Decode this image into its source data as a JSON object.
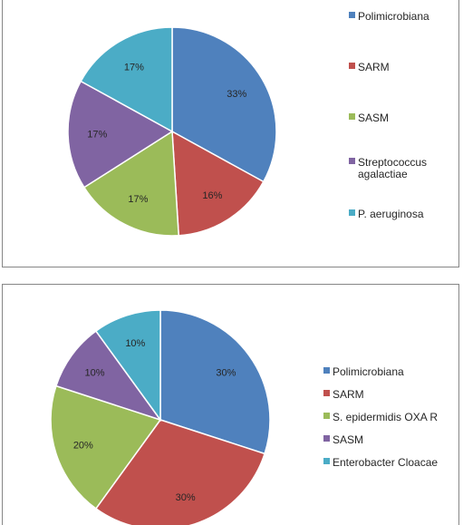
{
  "chart_data": [
    {
      "type": "pie",
      "title": "",
      "legend_position": "right",
      "categories": [
        "Polimicrobiana",
        "SARM",
        "SASM",
        "Streptococcus agalactiae",
        "P. aeruginosa"
      ],
      "values": [
        33,
        16,
        17,
        17,
        17
      ],
      "labels": [
        "33%",
        "16%",
        "17%",
        "17%",
        "17%"
      ],
      "legend_lines": [
        [
          "Polimicrobiana"
        ],
        [
          "SARM"
        ],
        [
          "SASM"
        ],
        [
          "Streptococcus",
          "agalactiae"
        ],
        [
          "P. aeruginosa"
        ]
      ],
      "colors": [
        "#4F81BD",
        "#C0504D",
        "#9BBB59",
        "#8064A2",
        "#4BACC6"
      ]
    },
    {
      "type": "pie",
      "title": "",
      "legend_position": "right",
      "categories": [
        "Polimicrobiana",
        "SARM",
        "S. epidermidis OXA R",
        "SASM",
        "Enterobacter Cloacae"
      ],
      "values": [
        30,
        30,
        20,
        10,
        10
      ],
      "labels": [
        "30%",
        "30%",
        "20%",
        "10%",
        "10%"
      ],
      "legend_lines": [
        [
          "Polimicrobiana"
        ],
        [
          "SARM"
        ],
        [
          "S. epidermidis OXA R"
        ],
        [
          "SASM"
        ],
        [
          "Enterobacter Cloacae"
        ]
      ],
      "colors": [
        "#4F81BD",
        "#C0504D",
        "#9BBB59",
        "#8064A2",
        "#4BACC6"
      ]
    }
  ]
}
